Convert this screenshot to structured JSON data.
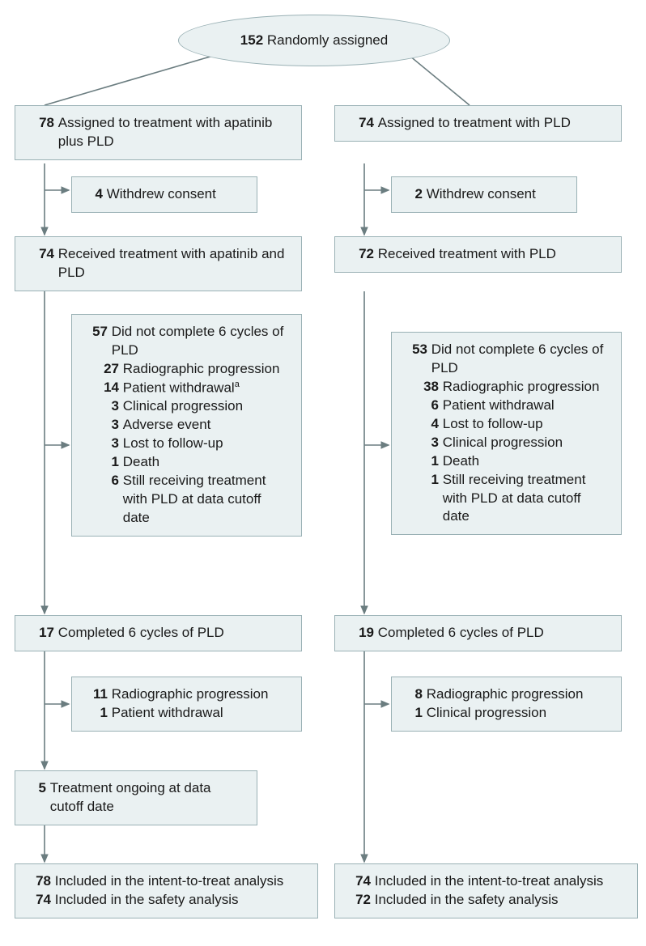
{
  "type": "flowchart",
  "colors": {
    "box_bg": "#eaf1f2",
    "box_border": "#9ab1b5",
    "line": "#6b7d80",
    "text": "#1a1a1a",
    "background": "#ffffff"
  },
  "fontsize": 17,
  "top": {
    "n": "152",
    "label": "Randomly assigned"
  },
  "left": {
    "assigned": {
      "n": "78",
      "label": "Assigned to treatment with apatinib plus PLD"
    },
    "withdrew": {
      "n": "4",
      "label": "Withdrew consent"
    },
    "received": {
      "n": "74",
      "label": "Received treatment with apatinib and PLD"
    },
    "incomplete": {
      "n": "57",
      "label": "Did not complete 6 cycles of PLD",
      "items": [
        {
          "n": "27",
          "label": "Radiographic progression"
        },
        {
          "n": "14",
          "label": "Patient withdrawal",
          "sup": "a"
        },
        {
          "n": "3",
          "label": "Clinical progression"
        },
        {
          "n": "3",
          "label": "Adverse event"
        },
        {
          "n": "3",
          "label": "Lost to follow-up"
        },
        {
          "n": "1",
          "label": "Death"
        },
        {
          "n": "6",
          "label": "Still receiving treatment with PLD at data cutoff date"
        }
      ]
    },
    "completed": {
      "n": "17",
      "label": "Completed 6 cycles of PLD"
    },
    "post": {
      "items": [
        {
          "n": "11",
          "label": "Radiographic progression"
        },
        {
          "n": "1",
          "label": "Patient withdrawal"
        }
      ]
    },
    "ongoing": {
      "n": "5",
      "label": "Treatment ongoing at data cutoff date"
    },
    "final": {
      "itt": {
        "n": "78",
        "label": "Included in the intent-to-treat analysis"
      },
      "safety": {
        "n": "74",
        "label": "Included in the safety analysis"
      }
    }
  },
  "right": {
    "assigned": {
      "n": "74",
      "label": "Assigned to treatment with PLD"
    },
    "withdrew": {
      "n": "2",
      "label": "Withdrew consent"
    },
    "received": {
      "n": "72",
      "label": "Received treatment with PLD"
    },
    "incomplete": {
      "n": "53",
      "label": "Did not complete 6 cycles of PLD",
      "items": [
        {
          "n": "38",
          "label": "Radiographic progression"
        },
        {
          "n": "6",
          "label": "Patient withdrawal"
        },
        {
          "n": "4",
          "label": "Lost to follow-up"
        },
        {
          "n": "3",
          "label": "Clinical progression"
        },
        {
          "n": "1",
          "label": "Death"
        },
        {
          "n": "1",
          "label": "Still receiving treatment with PLD at data cutoff date"
        }
      ]
    },
    "completed": {
      "n": "19",
      "label": "Completed 6 cycles of PLD"
    },
    "post": {
      "items": [
        {
          "n": "8",
          "label": "Radiographic progression"
        },
        {
          "n": "1",
          "label": "Clinical progression"
        }
      ]
    },
    "final": {
      "itt": {
        "n": "74",
        "label": "Included in the intent-to-treat analysis"
      },
      "safety": {
        "n": "72",
        "label": "Included in the safety analysis"
      }
    }
  }
}
